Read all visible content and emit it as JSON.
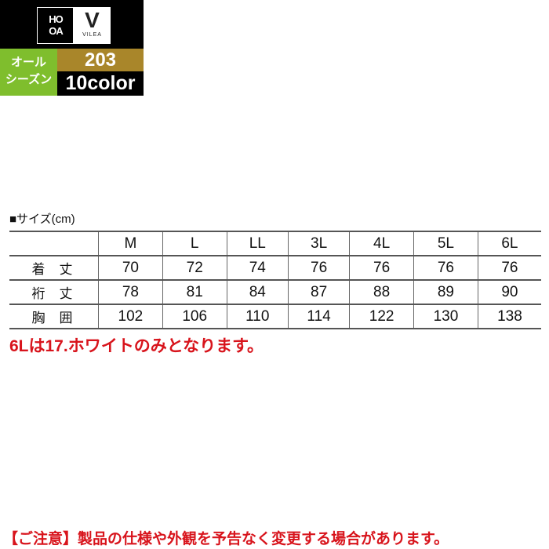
{
  "badge": {
    "brand_logo": "HOA",
    "sub_logo": "V",
    "sub_logo_text": "VILEA",
    "season_line1": "オール",
    "season_line2": "シーズン",
    "model": "203",
    "colors": "10color",
    "green": "#7fbe2d",
    "gold": "#a9862a"
  },
  "size_table": {
    "caption": "■サイズ(cm)",
    "headers": [
      "M",
      "L",
      "LL",
      "3L",
      "4L",
      "5L",
      "6L"
    ],
    "rows": [
      {
        "label": "着丈",
        "values": [
          "70",
          "72",
          "74",
          "76",
          "76",
          "76",
          "76"
        ]
      },
      {
        "label": "裄丈",
        "values": [
          "78",
          "81",
          "84",
          "87",
          "88",
          "89",
          "90"
        ]
      },
      {
        "label": "胸囲",
        "values": [
          "102",
          "106",
          "110",
          "114",
          "122",
          "130",
          "138"
        ]
      }
    ]
  },
  "note": "6Lは17.ホワイトのみとなります。",
  "caution": "【ご注意】製品の仕様や外観を予告なく変更する場合があります。",
  "accent_red": "#d8141c"
}
